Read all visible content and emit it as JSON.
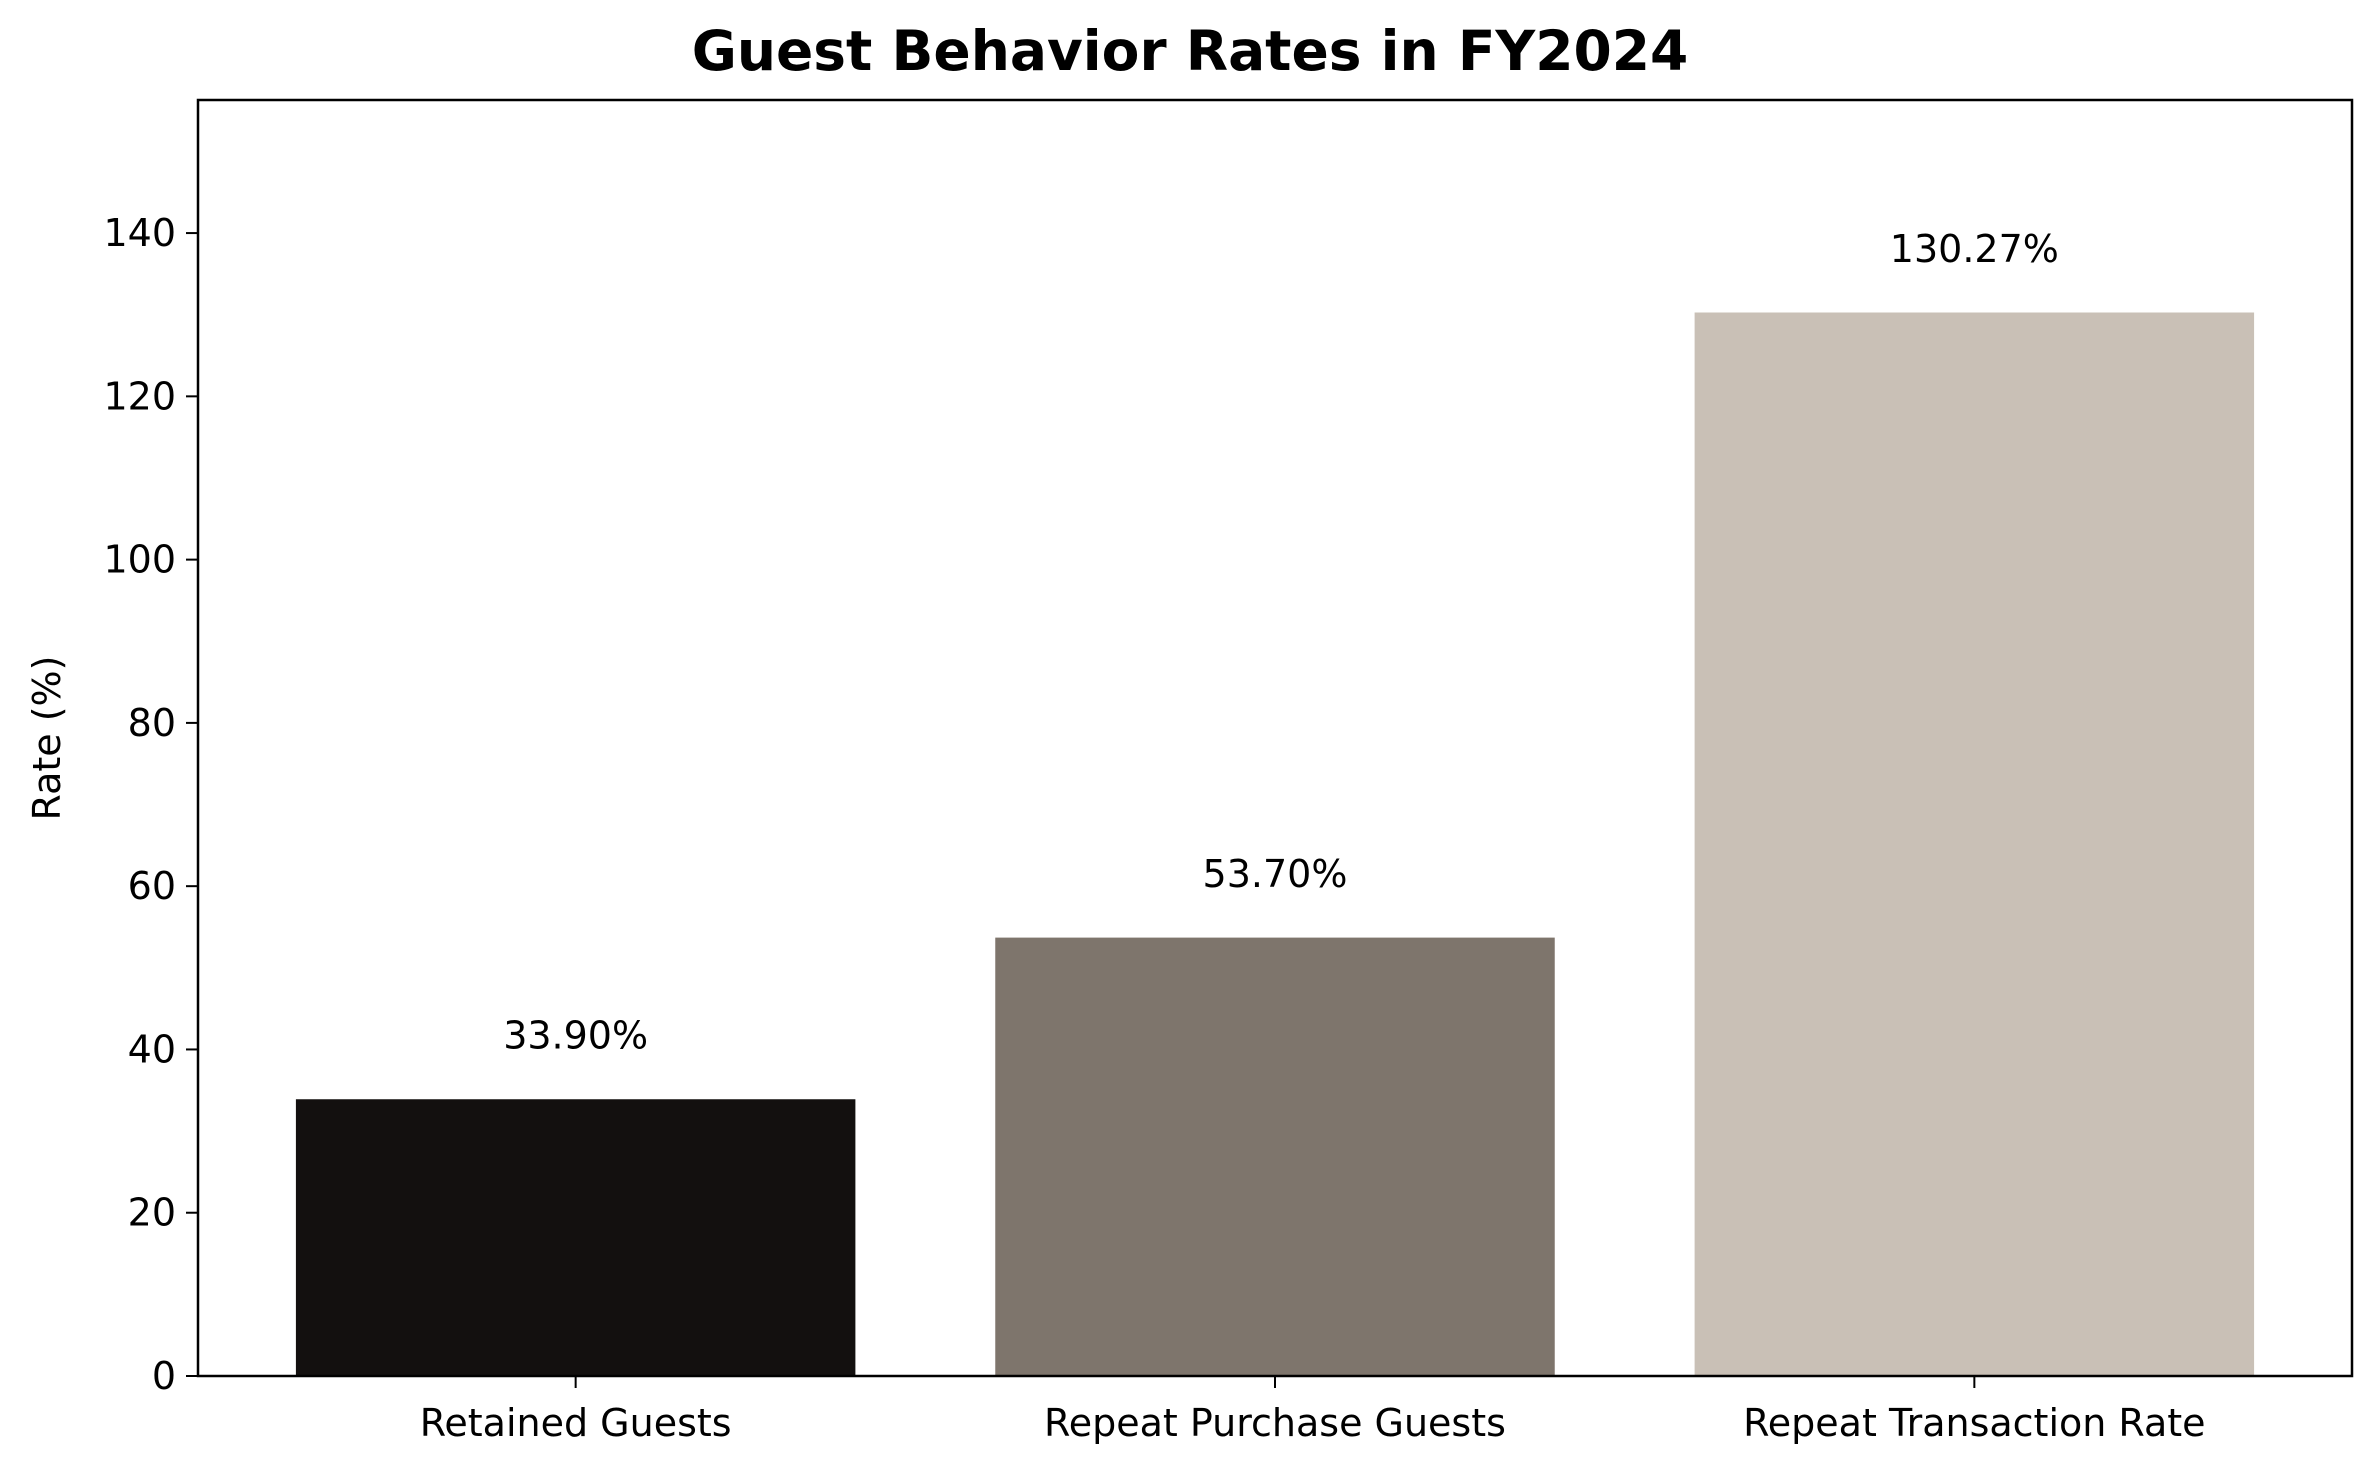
{
  "chart_data": {
    "type": "bar",
    "title": "Guest Behavior Rates in FY2024",
    "xlabel": "",
    "ylabel": "Rate (%)",
    "categories": [
      "Retained Guests",
      "Repeat Purchase Guests",
      "Repeat Transaction Rate"
    ],
    "values": [
      33.9,
      53.7,
      130.27
    ],
    "value_labels": [
      "33.90%",
      "53.70%",
      "130.27%"
    ],
    "colors": [
      "#13100f",
      "#7e756c",
      "#c9c0b6"
    ],
    "ylim": [
      0,
      156.3
    ],
    "yticks": [
      0,
      20,
      40,
      60,
      80,
      100,
      120,
      140
    ],
    "grid": false,
    "legend": "none"
  }
}
